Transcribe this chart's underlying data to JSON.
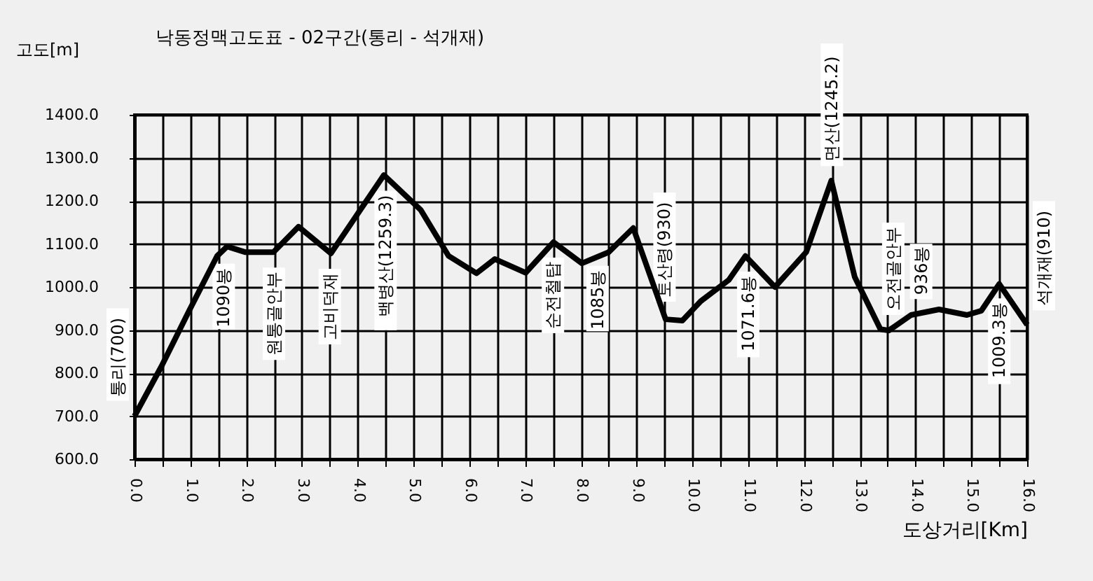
{
  "chart_data": {
    "type": "line",
    "title": "낙동정맥고도표 - 02구간(통리 - 석개재)",
    "ylabel": "고도[m]",
    "xlabel": "도상거리[Km]",
    "series": [
      {
        "color": "#000000",
        "x": [
          0,
          0.48,
          0.98,
          1.48,
          1.66,
          1.98,
          2.49,
          2.94,
          3.52,
          4.47,
          5.13,
          5.63,
          6.13,
          6.46,
          7.01,
          7.51,
          8.02,
          8.5,
          8.94,
          9.52,
          9.82,
          10.15,
          10.65,
          10.95,
          11.48,
          12.04,
          12.49,
          12.91,
          13.37,
          13.52,
          13.92,
          14.42,
          14.92,
          15.18,
          15.5,
          16.0
        ],
        "values": [
          700,
          815,
          945,
          1072,
          1094,
          1081,
          1081,
          1140,
          1078,
          1260,
          1179,
          1072,
          1032,
          1065,
          1033,
          1104,
          1055,
          1081,
          1137,
          925,
          922,
          967,
          1016,
          1072,
          1000,
          1081,
          1247,
          1023,
          902,
          899,
          935,
          948,
          935,
          945,
          1007,
          912
        ]
      }
    ],
    "xlim": [
      0,
      16
    ],
    "ylim": [
      600,
      1400
    ],
    "xticks": [
      {
        "value": 0,
        "label": "0.0"
      },
      {
        "value": 0.5,
        "label": null
      },
      {
        "value": 1,
        "label": "1.0"
      },
      {
        "value": 1.5,
        "label": null
      },
      {
        "value": 2,
        "label": "2.0"
      },
      {
        "value": 2.5,
        "label": null
      },
      {
        "value": 3,
        "label": "3.0"
      },
      {
        "value": 3.5,
        "label": null
      },
      {
        "value": 4,
        "label": "4.0"
      },
      {
        "value": 4.5,
        "label": null
      },
      {
        "value": 5,
        "label": "5.0"
      },
      {
        "value": 5.5,
        "label": null
      },
      {
        "value": 6,
        "label": "6.0"
      },
      {
        "value": 6.5,
        "label": null
      },
      {
        "value": 7,
        "label": "7.0"
      },
      {
        "value": 7.5,
        "label": null
      },
      {
        "value": 8,
        "label": "8.0"
      },
      {
        "value": 8.5,
        "label": null
      },
      {
        "value": 9,
        "label": "9.0"
      },
      {
        "value": 9.5,
        "label": null
      },
      {
        "value": 10,
        "label": "10.0"
      },
      {
        "value": 10.5,
        "label": null
      },
      {
        "value": 11,
        "label": "11.0"
      },
      {
        "value": 11.5,
        "label": null
      },
      {
        "value": 12,
        "label": "12.0"
      },
      {
        "value": 12.5,
        "label": null
      },
      {
        "value": 13,
        "label": "13.0"
      },
      {
        "value": 13.5,
        "label": null
      },
      {
        "value": 14,
        "label": "14.0"
      },
      {
        "value": 14.5,
        "label": null
      },
      {
        "value": 15,
        "label": "15.0"
      },
      {
        "value": 15.5,
        "label": null
      },
      {
        "value": 16,
        "label": "16.0"
      }
    ],
    "yticks": [
      {
        "value": 600,
        "label": "600.0"
      },
      {
        "value": 700,
        "label": "700.0"
      },
      {
        "value": 800,
        "label": "800.0"
      },
      {
        "value": 900,
        "label": "900.0"
      },
      {
        "value": 1000,
        "label": "1000.0"
      },
      {
        "value": 1100,
        "label": "1100.0"
      },
      {
        "value": 1200,
        "label": "1200.0"
      },
      {
        "value": 1300,
        "label": "1300.0"
      },
      {
        "value": 1400,
        "label": "1400.0"
      }
    ],
    "grid": true,
    "line_style": "solid",
    "marker": "none",
    "annotations": [
      {
        "text": "통리(700)",
        "x": 0,
        "y": 700
      },
      {
        "text": "1090봉",
        "x": 1.6,
        "y": 1090
      },
      {
        "text": "원통골안부",
        "x": 2.5,
        "y": 1081
      },
      {
        "text": "고비덕재",
        "x": 3.5,
        "y": 1078
      },
      {
        "text": "백병산(1259.3)",
        "x": 4.5,
        "y": 1259.3
      },
      {
        "text": "순전철탑",
        "x": 7.5,
        "y": 1104
      },
      {
        "text": "1085봉",
        "x": 8.3,
        "y": 1085
      },
      {
        "text": "토산령(930)",
        "x": 9.5,
        "y": 930
      },
      {
        "text": "1071.6봉",
        "x": 11.0,
        "y": 1071.6
      },
      {
        "text": "면산(1245.2)",
        "x": 12.5,
        "y": 1245.2
      },
      {
        "text": "오전골안부",
        "x": 13.6,
        "y": 899
      },
      {
        "text": "936봉",
        "x": 14.1,
        "y": 936
      },
      {
        "text": "1009.3봉",
        "x": 15.5,
        "y": 1009.3
      },
      {
        "text": "석개재(910)",
        "x": 16.0,
        "y": 910
      }
    ]
  }
}
